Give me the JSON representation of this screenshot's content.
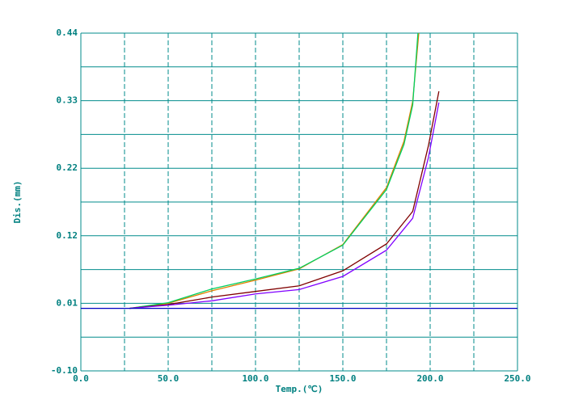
{
  "chart_data": {
    "type": "line",
    "xlabel": "Temp.(℃)",
    "ylabel": "Dis.(mm)",
    "xlim": [
      0,
      250
    ],
    "ylim": [
      -0.1,
      0.44
    ],
    "xticks": [
      {
        "value": 0,
        "label": "0.0"
      },
      {
        "value": 50,
        "label": "50.0"
      },
      {
        "value": 100,
        "label": "100.0"
      },
      {
        "value": 150,
        "label": "150.0"
      },
      {
        "value": 200,
        "label": "200.0"
      },
      {
        "value": 250,
        "label": "250.0"
      }
    ],
    "yticks": [
      {
        "value": -0.1,
        "label": "-0.10"
      },
      {
        "value": 0.008,
        "label": "0.01"
      },
      {
        "value": 0.116,
        "label": "0.12"
      },
      {
        "value": 0.224,
        "label": "0.22"
      },
      {
        "value": 0.332,
        "label": "0.33"
      },
      0.44
    ],
    "grid": true,
    "series": [
      {
        "color": "#e08000",
        "x": [
          27.8,
          50,
          75,
          100,
          125,
          150,
          175,
          185,
          190,
          193.5
        ],
        "values": [
          0,
          0.008,
          0.028,
          0.045,
          0.063,
          0.102,
          0.193,
          0.267,
          0.331,
          0.44
        ]
      },
      {
        "color": "#00d060",
        "x": [
          27.8,
          50,
          75,
          100,
          125,
          150,
          175,
          185,
          190,
          193
        ],
        "values": [
          0,
          0.009,
          0.031,
          0.047,
          0.064,
          0.101,
          0.19,
          0.262,
          0.325,
          0.44
        ]
      },
      {
        "color": "#800000",
        "x": [
          27.8,
          50,
          75,
          100,
          125,
          150,
          175,
          190,
          199,
          205
        ],
        "values": [
          0,
          0.006,
          0.018,
          0.027,
          0.036,
          0.06,
          0.103,
          0.155,
          0.26,
          0.347
        ]
      },
      {
        "color": "#8000ff",
        "x": [
          27.8,
          50,
          75,
          100,
          125,
          150,
          175,
          190,
          199,
          205
        ],
        "values": [
          0,
          0.005,
          0.012,
          0.023,
          0.03,
          0.051,
          0.093,
          0.144,
          0.241,
          0.329
        ]
      },
      {
        "color": "#0000c0",
        "x": [
          0,
          250
        ],
        "values": [
          0,
          0
        ]
      }
    ]
  }
}
